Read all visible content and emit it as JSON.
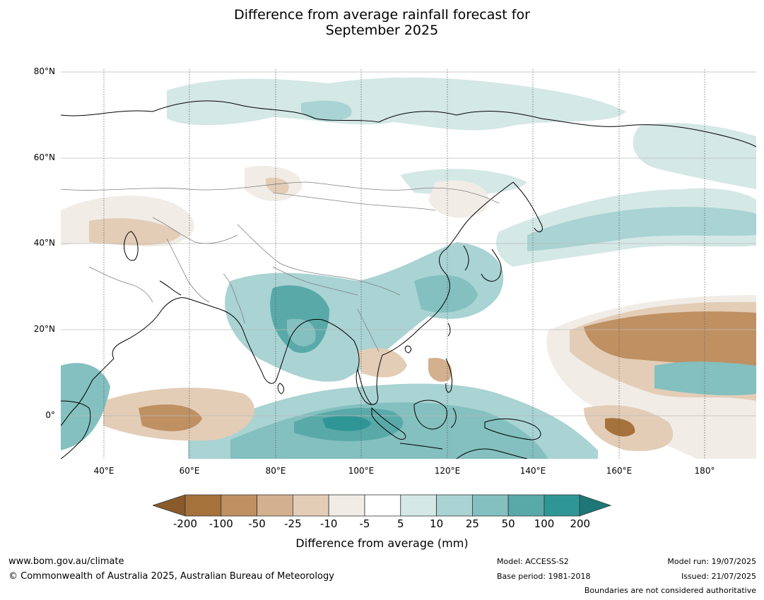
{
  "title_line1": "Difference from average rainfall forecast for",
  "title_line2": "September 2025",
  "map": {
    "lat_labels": [
      "80°N",
      "60°N",
      "40°N",
      "20°N",
      "0°"
    ],
    "lon_labels": [
      "40°E",
      "60°E",
      "80°E",
      "100°E",
      "120°E",
      "140°E",
      "160°E",
      "180°"
    ],
    "extent": {
      "lon_min": 30,
      "lon_max": 192,
      "lat_min": -10,
      "lat_max": 81
    }
  },
  "legend": {
    "ticks": [
      "-200",
      "-100",
      "-50",
      "-25",
      "-10",
      "-5",
      "5",
      "10",
      "25",
      "50",
      "100",
      "200"
    ],
    "colors": [
      "#a6723b",
      "#bf9062",
      "#d3b08e",
      "#e3cdb7",
      "#f1ece6",
      "#ffffff",
      "#d4e8e6",
      "#aad3d3",
      "#83c0bf",
      "#5aa9a9",
      "#2f9696"
    ],
    "under_color": "#8a5a2b",
    "over_color": "#1d7777",
    "label": "Difference from average (mm)"
  },
  "footer": {
    "website": "www.bom.gov.au/climate",
    "copyright": "© Commonwealth of Australia 2025, Australian Bureau of Meteorology",
    "model": "Model: ACCESS-S2",
    "base_period": "Base period: 1981-2018",
    "model_run": "Model run: 19/07/2025",
    "issued": "Issued: 21/07/2025",
    "disclaimer": "Boundaries are not considered authoritative"
  }
}
